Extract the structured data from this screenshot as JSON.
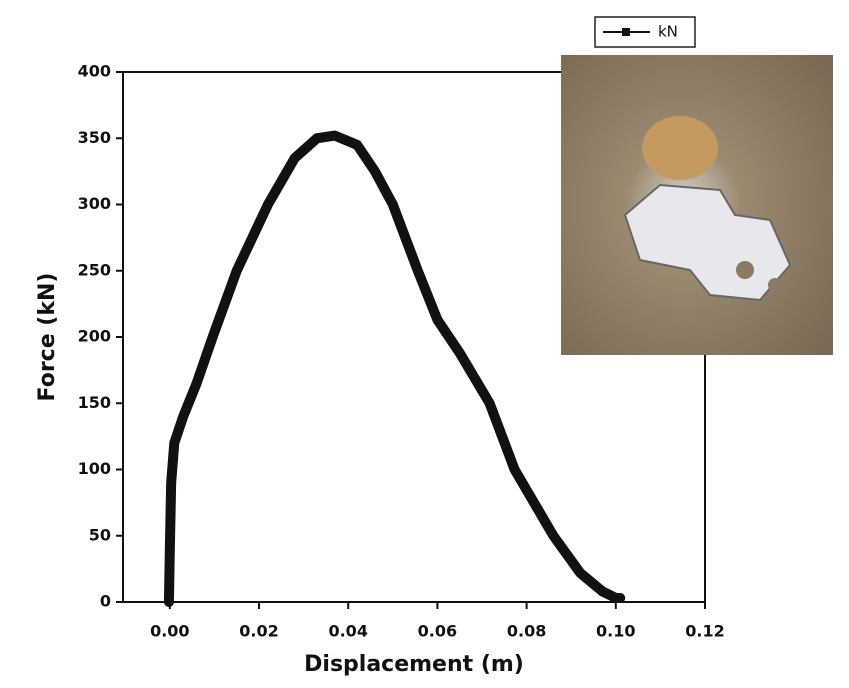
{
  "chart_data": {
    "type": "line",
    "xlabel": "Displacement (m)",
    "ylabel": "Force (kN)",
    "xlim": [
      -0.0105,
      0.12
    ],
    "ylim": [
      0,
      400
    ],
    "xticks": [
      {
        "value": 0,
        "label": "0.00"
      },
      {
        "value": 0.02,
        "label": "0.02"
      },
      {
        "value": 0.04,
        "label": "0.04"
      },
      {
        "value": 0.06,
        "label": "0.06"
      },
      {
        "value": 0.08,
        "label": "0.08"
      },
      {
        "value": 0.1,
        "label": "0.10"
      },
      {
        "value": 0.12,
        "label": "0.12"
      }
    ],
    "yticks": [
      0,
      50,
      100,
      150,
      200,
      250,
      300,
      350,
      400
    ],
    "series": [
      {
        "name": "kN",
        "color": "#111111",
        "x": [
          -0.0002,
          0,
          0.0003,
          0.001,
          0.003,
          0.006,
          0.0096,
          0.015,
          0.022,
          0.028,
          0.033,
          0.037,
          0.042,
          0.046,
          0.05,
          0.0556,
          0.06,
          0.065,
          0.0717,
          0.0773,
          0.086,
          0.092,
          0.097,
          0.1,
          0.101
        ],
        "values": [
          0,
          40,
          90,
          120,
          140,
          165,
          200,
          250,
          300,
          335,
          350,
          352,
          345,
          325,
          300,
          250,
          213,
          188,
          150,
          100,
          50,
          22,
          8,
          3,
          3
        ]
      }
    ]
  }
}
